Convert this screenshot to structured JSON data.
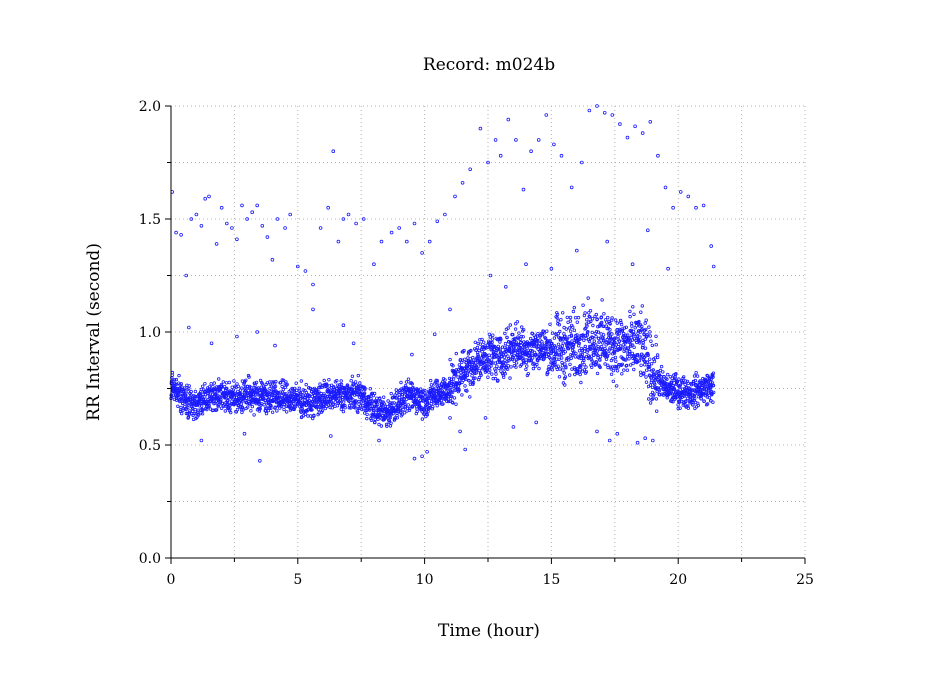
{
  "chart_data": {
    "type": "scatter",
    "title": "Record:  m024b",
    "xlabel": "Time (hour)",
    "ylabel": "RR Interval (second)",
    "xlim": [
      0,
      25
    ],
    "ylim": [
      0.0,
      2.0
    ],
    "xticks": [
      0,
      5,
      10,
      15,
      20,
      25
    ],
    "xtick_labels": [
      "0",
      "5",
      "10",
      "15",
      "20",
      "25"
    ],
    "yticks": [
      0.0,
      0.5,
      1.0,
      1.5,
      2.0
    ],
    "ytick_labels": [
      "0.0",
      "0.5",
      "1.0",
      "1.5",
      "2.0"
    ],
    "grid": true,
    "marker_color": "#1a1aff",
    "series": [
      {
        "baseline": [
          [
            0.0,
            0.76
          ],
          [
            0.5,
            0.7
          ],
          [
            1.0,
            0.68
          ],
          [
            1.5,
            0.71
          ],
          [
            2.0,
            0.72
          ],
          [
            2.5,
            0.7
          ],
          [
            3.0,
            0.72
          ],
          [
            3.5,
            0.72
          ],
          [
            4.0,
            0.71
          ],
          [
            4.5,
            0.71
          ],
          [
            5.0,
            0.7
          ],
          [
            5.5,
            0.69
          ],
          [
            6.0,
            0.71
          ],
          [
            6.5,
            0.72
          ],
          [
            7.0,
            0.72
          ],
          [
            7.5,
            0.72
          ],
          [
            8.0,
            0.66
          ],
          [
            8.5,
            0.64
          ],
          [
            9.0,
            0.69
          ],
          [
            9.5,
            0.72
          ],
          [
            10.0,
            0.69
          ],
          [
            10.5,
            0.73
          ],
          [
            11.0,
            0.75
          ],
          [
            11.5,
            0.82
          ],
          [
            12.0,
            0.86
          ],
          [
            12.5,
            0.9
          ],
          [
            13.0,
            0.88
          ],
          [
            13.5,
            0.94
          ],
          [
            14.0,
            0.92
          ],
          [
            14.5,
            0.93
          ],
          [
            15.0,
            0.92
          ],
          [
            15.5,
            0.93
          ],
          [
            16.0,
            0.94
          ],
          [
            16.5,
            0.97
          ],
          [
            17.0,
            0.96
          ],
          [
            17.5,
            0.94
          ],
          [
            18.0,
            0.93
          ],
          [
            18.5,
            0.95
          ],
          [
            19.0,
            0.82
          ],
          [
            19.5,
            0.75
          ],
          [
            20.0,
            0.74
          ],
          [
            20.5,
            0.73
          ],
          [
            21.0,
            0.75
          ],
          [
            21.4,
            0.76
          ]
        ],
        "outliers": [
          [
            0.05,
            1.62
          ],
          [
            0.2,
            1.44
          ],
          [
            0.4,
            1.43
          ],
          [
            0.6,
            1.25
          ],
          [
            0.8,
            1.5
          ],
          [
            1.0,
            1.52
          ],
          [
            1.2,
            1.47
          ],
          [
            1.35,
            1.59
          ],
          [
            1.5,
            1.6
          ],
          [
            1.8,
            1.39
          ],
          [
            2.0,
            1.55
          ],
          [
            2.2,
            1.48
          ],
          [
            2.4,
            1.46
          ],
          [
            2.6,
            1.41
          ],
          [
            2.8,
            1.56
          ],
          [
            3.0,
            1.5
          ],
          [
            3.2,
            1.53
          ],
          [
            3.4,
            1.56
          ],
          [
            3.6,
            1.47
          ],
          [
            3.8,
            1.42
          ],
          [
            4.0,
            1.32
          ],
          [
            4.2,
            1.5
          ],
          [
            4.5,
            1.46
          ],
          [
            4.7,
            1.52
          ],
          [
            5.0,
            1.29
          ],
          [
            5.3,
            1.27
          ],
          [
            5.6,
            1.21
          ],
          [
            5.9,
            1.46
          ],
          [
            6.2,
            1.55
          ],
          [
            6.4,
            1.8
          ],
          [
            6.6,
            1.4
          ],
          [
            6.8,
            1.5
          ],
          [
            7.0,
            1.52
          ],
          [
            7.3,
            1.48
          ],
          [
            7.6,
            1.5
          ],
          [
            8.0,
            1.3
          ],
          [
            8.3,
            1.4
          ],
          [
            8.7,
            1.44
          ],
          [
            9.0,
            1.46
          ],
          [
            9.3,
            1.4
          ],
          [
            9.6,
            1.48
          ],
          [
            9.9,
            1.35
          ],
          [
            10.2,
            1.4
          ],
          [
            10.5,
            1.49
          ],
          [
            10.8,
            1.52
          ],
          [
            11.2,
            1.6
          ],
          [
            11.5,
            1.66
          ],
          [
            11.8,
            1.72
          ],
          [
            12.2,
            1.9
          ],
          [
            12.5,
            1.75
          ],
          [
            12.8,
            1.85
          ],
          [
            13.0,
            1.78
          ],
          [
            13.3,
            1.94
          ],
          [
            13.6,
            1.85
          ],
          [
            13.9,
            1.63
          ],
          [
            14.2,
            1.8
          ],
          [
            14.5,
            1.85
          ],
          [
            14.8,
            1.96
          ],
          [
            15.1,
            1.83
          ],
          [
            15.4,
            1.78
          ],
          [
            15.8,
            1.64
          ],
          [
            16.2,
            1.75
          ],
          [
            16.5,
            1.98
          ],
          [
            16.8,
            2.0
          ],
          [
            17.1,
            1.97
          ],
          [
            17.4,
            1.96
          ],
          [
            17.7,
            1.92
          ],
          [
            18.0,
            1.86
          ],
          [
            18.3,
            1.91
          ],
          [
            18.6,
            1.88
          ],
          [
            18.9,
            1.93
          ],
          [
            19.2,
            1.78
          ],
          [
            19.5,
            1.64
          ],
          [
            19.8,
            1.55
          ],
          [
            20.1,
            1.62
          ],
          [
            20.4,
            1.6
          ],
          [
            20.7,
            1.55
          ],
          [
            21.0,
            1.56
          ],
          [
            21.3,
            1.38
          ],
          [
            21.4,
            1.29
          ],
          [
            0.7,
            1.02
          ],
          [
            1.6,
            0.95
          ],
          [
            2.6,
            0.98
          ],
          [
            3.4,
            1.0
          ],
          [
            4.1,
            0.94
          ],
          [
            5.6,
            1.1
          ],
          [
            6.8,
            1.03
          ],
          [
            7.2,
            0.95
          ],
          [
            9.5,
            0.9
          ],
          [
            10.4,
            0.99
          ],
          [
            11.0,
            1.1
          ],
          [
            12.6,
            1.25
          ],
          [
            13.2,
            1.2
          ],
          [
            14.0,
            1.3
          ],
          [
            15.0,
            1.28
          ],
          [
            16.0,
            1.36
          ],
          [
            17.2,
            1.4
          ],
          [
            18.2,
            1.3
          ],
          [
            18.8,
            1.45
          ],
          [
            19.6,
            1.28
          ],
          [
            3.5,
            0.43
          ],
          [
            8.2,
            0.52
          ],
          [
            9.6,
            0.44
          ],
          [
            9.9,
            0.45
          ],
          [
            10.1,
            0.47
          ],
          [
            11.0,
            0.62
          ],
          [
            11.4,
            0.56
          ],
          [
            11.6,
            0.48
          ],
          [
            12.4,
            0.62
          ],
          [
            13.5,
            0.58
          ],
          [
            14.4,
            0.6
          ],
          [
            16.8,
            0.56
          ],
          [
            17.3,
            0.52
          ],
          [
            17.6,
            0.55
          ],
          [
            18.4,
            0.51
          ],
          [
            18.7,
            0.53
          ],
          [
            19.0,
            0.52
          ],
          [
            2.9,
            0.55
          ],
          [
            1.2,
            0.52
          ],
          [
            6.3,
            0.54
          ]
        ]
      }
    ]
  }
}
